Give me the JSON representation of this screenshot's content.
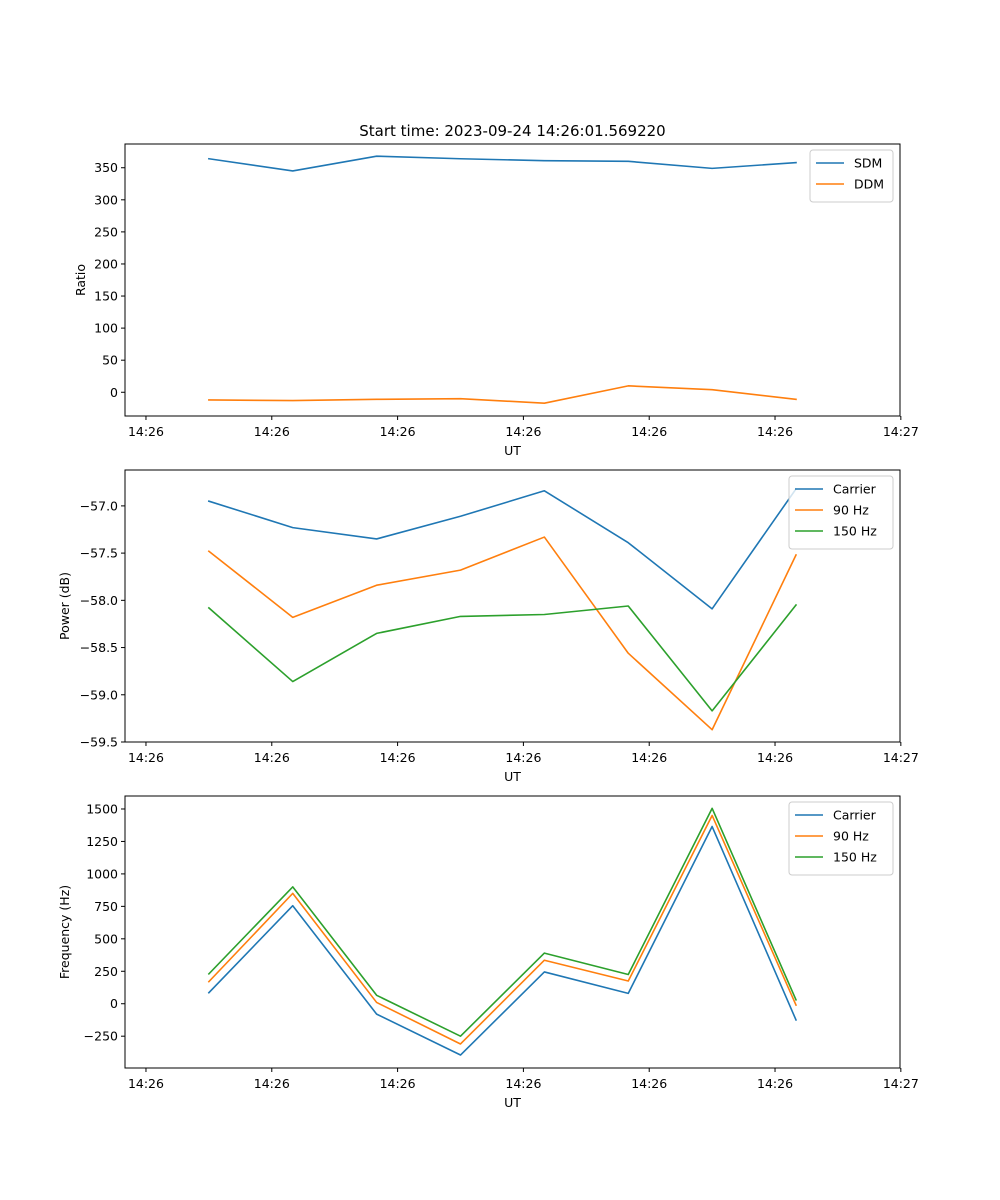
{
  "chart_data": [
    {
      "type": "line",
      "title": "Start time: 2023-09-24 14:26:01.569220",
      "xlabel": "UT",
      "ylabel": "Ratio",
      "x": [
        1,
        2,
        3,
        4,
        5,
        6,
        7,
        8
      ],
      "xlim": [
        0,
        9.24
      ],
      "xticks": [
        0.25,
        1.75,
        3.25,
        4.75,
        6.25,
        7.75,
        9.25
      ],
      "xtick_labels": [
        "14:26",
        "14:26",
        "14:26",
        "14:26",
        "14:26",
        "14:26",
        "14:27"
      ],
      "ylim": [
        -37,
        387
      ],
      "yticks": [
        0,
        50,
        100,
        150,
        200,
        250,
        300,
        350
      ],
      "ytick_labels": [
        "0",
        "50",
        "100",
        "150",
        "200",
        "250",
        "300",
        "350"
      ],
      "legend_position": "upper-right",
      "series": [
        {
          "name": "SDM",
          "color": "#1f77b4",
          "values": [
            364,
            345,
            368,
            364,
            361,
            360,
            349,
            358
          ]
        },
        {
          "name": "DDM",
          "color": "#ff7f0e",
          "values": [
            -12,
            -13,
            -11,
            -10,
            -17,
            10,
            4,
            -11
          ]
        }
      ]
    },
    {
      "type": "line",
      "title": "",
      "xlabel": "UT",
      "ylabel": "Power (dB)",
      "x": [
        1,
        2,
        3,
        4,
        5,
        6,
        7,
        8
      ],
      "xlim": [
        0,
        9.24
      ],
      "xticks": [
        0.25,
        1.75,
        3.25,
        4.75,
        6.25,
        7.75,
        9.25
      ],
      "xtick_labels": [
        "14:26",
        "14:26",
        "14:26",
        "14:26",
        "14:26",
        "14:26",
        "14:27"
      ],
      "ylim": [
        -59.5,
        -56.62
      ],
      "yticks": [
        -59.5,
        -59.0,
        -58.5,
        -58.0,
        -57.5,
        -57.0
      ],
      "ytick_labels": [
        "−59.5",
        "−59.0",
        "−58.5",
        "−58.0",
        "−57.5",
        "−57.0"
      ],
      "legend_position": "upper-right",
      "series": [
        {
          "name": "Carrier",
          "color": "#1f77b4",
          "values": [
            -56.95,
            -57.23,
            -57.35,
            -57.11,
            -56.84,
            -57.39,
            -58.09,
            -56.82
          ]
        },
        {
          "name": "90 Hz",
          "color": "#ff7f0e",
          "values": [
            -57.48,
            -58.18,
            -57.84,
            -57.68,
            -57.33,
            -58.56,
            -59.37,
            -57.52
          ]
        },
        {
          "name": "150 Hz",
          "color": "#2ca02c",
          "values": [
            -58.08,
            -58.86,
            -58.35,
            -58.17,
            -58.15,
            -58.06,
            -59.17,
            -58.05
          ]
        }
      ]
    },
    {
      "type": "line",
      "title": "",
      "xlabel": "UT",
      "ylabel": "Frequency (Hz)",
      "x": [
        1,
        2,
        3,
        4,
        5,
        6,
        7,
        8
      ],
      "xlim": [
        0,
        9.24
      ],
      "xticks": [
        0.25,
        1.75,
        3.25,
        4.75,
        6.25,
        7.75,
        9.25
      ],
      "xtick_labels": [
        "14:26",
        "14:26",
        "14:26",
        "14:26",
        "14:26",
        "14:26",
        "14:27"
      ],
      "ylim": [
        -495,
        1600
      ],
      "yticks": [
        -250,
        0,
        250,
        500,
        750,
        1000,
        1250,
        1500
      ],
      "ytick_labels": [
        "−250",
        "0",
        "250",
        "500",
        "750",
        "1000",
        "1250",
        "1500"
      ],
      "legend_position": "upper-right",
      "series": [
        {
          "name": "Carrier",
          "color": "#1f77b4",
          "values": [
            85,
            755,
            -80,
            -395,
            245,
            80,
            1365,
            -125
          ]
        },
        {
          "name": "90 Hz",
          "color": "#ff7f0e",
          "values": [
            170,
            850,
            10,
            -310,
            335,
            175,
            1450,
            -10
          ]
        },
        {
          "name": "150 Hz",
          "color": "#2ca02c",
          "values": [
            230,
            900,
            65,
            -250,
            390,
            225,
            1505,
            30
          ]
        }
      ]
    }
  ]
}
